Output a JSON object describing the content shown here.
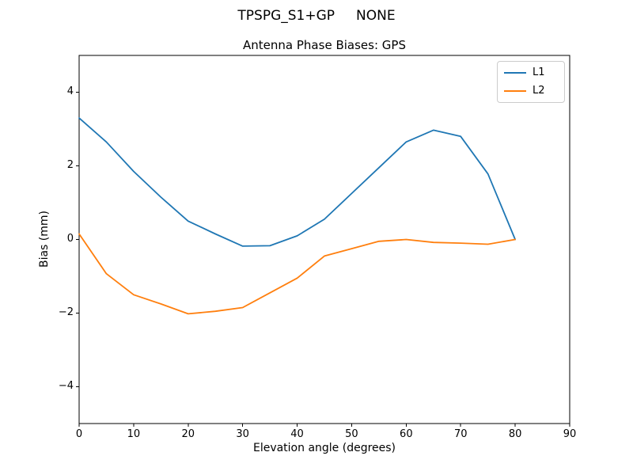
{
  "figure": {
    "suptitle": "TPSPG_S1+GP     NONE"
  },
  "chart_data": {
    "type": "line",
    "title": "Antenna Phase Biases: GPS",
    "suptitle": "TPSPG_S1+GP     NONE",
    "xlabel": "Elevation angle (degrees)",
    "ylabel": "Bias (mm)",
    "xlim": [
      0,
      90
    ],
    "ylim": [
      -5,
      5
    ],
    "xticks": [
      0,
      10,
      20,
      30,
      40,
      50,
      60,
      70,
      80,
      90
    ],
    "yticks": [
      -4,
      -2,
      0,
      2,
      4
    ],
    "grid": false,
    "legend_position": "upper right",
    "x": [
      0,
      5,
      10,
      15,
      20,
      25,
      30,
      35,
      40,
      45,
      50,
      55,
      60,
      65,
      70,
      75,
      80
    ],
    "series": [
      {
        "name": "L1",
        "color": "#1f77b4",
        "values": [
          3.3,
          2.65,
          1.85,
          1.15,
          0.5,
          0.15,
          -0.18,
          -0.17,
          0.1,
          0.55,
          1.25,
          1.95,
          2.65,
          2.97,
          2.8,
          1.78,
          0.0
        ]
      },
      {
        "name": "L2",
        "color": "#ff7f0e",
        "values": [
          0.15,
          -0.93,
          -1.5,
          -1.75,
          -2.02,
          -1.95,
          -1.85,
          -1.45,
          -1.05,
          -0.45,
          -0.25,
          -0.05,
          0.0,
          -0.08,
          -0.1,
          -0.13,
          0.0
        ]
      }
    ]
  }
}
